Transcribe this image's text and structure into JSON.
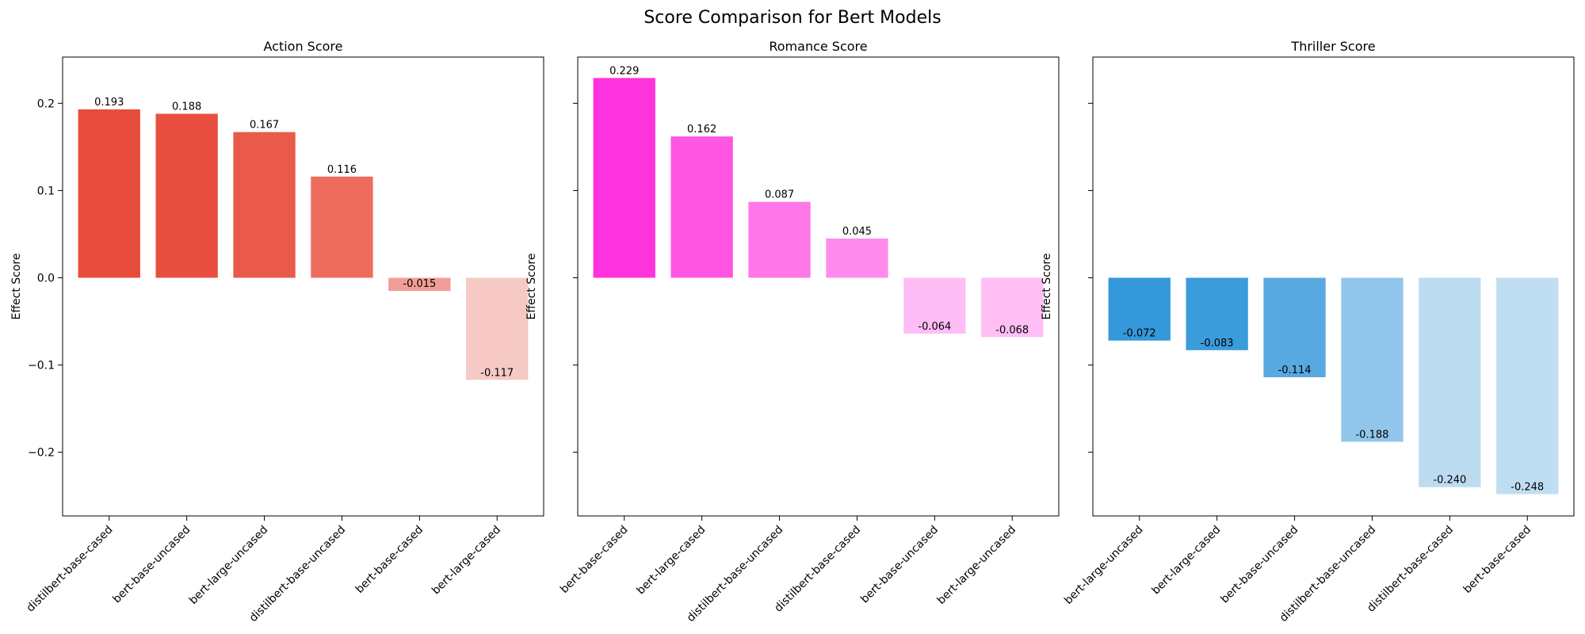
{
  "figure": {
    "title": "Score Comparison for Bert Models"
  },
  "chart_data": [
    {
      "type": "bar",
      "title": "Action Score",
      "xlabel": "",
      "ylabel": "Effect Score",
      "ylim": [
        -0.273,
        0.253
      ],
      "yticks": [
        -0.2,
        -0.1,
        0.0,
        0.1,
        0.2
      ],
      "ytick_labels": [
        "−0.2",
        "−0.1",
        "0.0",
        "0.1",
        "0.2"
      ],
      "grid": false,
      "categories": [
        "distilbert-base-cased",
        "bert-base-uncased",
        "bert-large-uncased",
        "distilbert-base-uncased",
        "bert-base-cased",
        "bert-large-cased"
      ],
      "values": [
        0.193,
        0.188,
        0.167,
        0.116,
        -0.015,
        -0.117
      ],
      "value_labels": [
        "0.193",
        "0.188",
        "0.167",
        "0.116",
        "-0.015",
        "-0.117"
      ],
      "colors": [
        "#e74c3c",
        "#e84f3f",
        "#ea5a4a",
        "#ee6c5e",
        "#f19e96",
        "#f6c9c4"
      ]
    },
    {
      "type": "bar",
      "title": "Romance Score",
      "xlabel": "",
      "ylabel": "Effect Score",
      "ylim": [
        -0.273,
        0.253
      ],
      "yticks": [
        -0.2,
        -0.1,
        0.0,
        0.1,
        0.2
      ],
      "ytick_labels": [
        "",
        "",
        "",
        "",
        ""
      ],
      "grid": false,
      "categories": [
        "bert-base-cased",
        "bert-large-cased",
        "distilbert-base-uncased",
        "distilbert-base-cased",
        "bert-base-uncased",
        "bert-large-uncased"
      ],
      "values": [
        0.229,
        0.162,
        0.087,
        0.045,
        -0.064,
        -0.068
      ],
      "value_labels": [
        "0.229",
        "0.162",
        "0.087",
        "0.045",
        "-0.064",
        "-0.068"
      ],
      "colors": [
        "#ff33dd",
        "#ff55e3",
        "#ff77e8",
        "#ff8cec",
        "#ffbdf5",
        "#ffbff5"
      ]
    },
    {
      "type": "bar",
      "title": "Thriller Score",
      "xlabel": "",
      "ylabel": "Effect Score",
      "ylim": [
        -0.273,
        0.253
      ],
      "yticks": [
        -0.2,
        -0.1,
        0.0,
        0.1,
        0.2
      ],
      "ytick_labels": [
        "",
        "",
        "",
        "",
        ""
      ],
      "grid": false,
      "categories": [
        "bert-large-uncased",
        "bert-large-cased",
        "bert-base-uncased",
        "distilbert-base-uncased",
        "distilbert-base-cased",
        "bert-base-cased"
      ],
      "values": [
        -0.072,
        -0.083,
        -0.114,
        -0.188,
        -0.24,
        -0.248
      ],
      "value_labels": [
        "-0.072",
        "-0.083",
        "-0.114",
        "-0.188",
        "-0.240",
        "-0.248"
      ],
      "colors": [
        "#3498db",
        "#3b9cdc",
        "#57a9e0",
        "#92c6ea",
        "#bcdcf2",
        "#c0def3"
      ]
    }
  ]
}
